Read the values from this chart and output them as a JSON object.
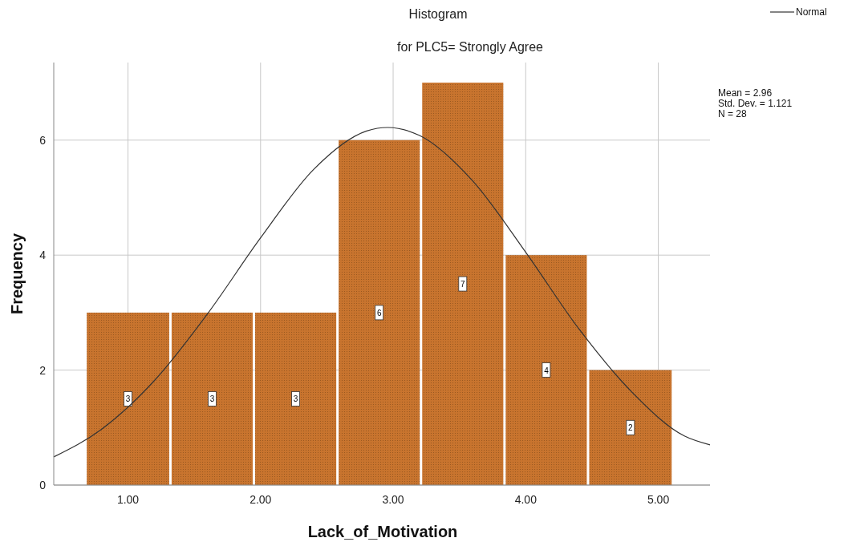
{
  "chart_data": {
    "type": "histogram",
    "title": "Histogram",
    "subtitle": "for PLC5= Strongly Agree",
    "xlabel": "Lack_of_Motivation",
    "ylabel": "Frequency",
    "bins": [
      0.68,
      1.32,
      1.95,
      2.58,
      3.21,
      3.84,
      4.47,
      5.11
    ],
    "series": [
      {
        "color": "#c8742e",
        "values": [
          3,
          3,
          3,
          6,
          7,
          4,
          2
        ],
        "value_labels": [
          "3",
          "3",
          "3",
          "6",
          "7",
          "4",
          "2"
        ]
      },
      {
        "type": "line",
        "name": "Normal",
        "color": "#333333",
        "x": [
          0.44,
          0.8,
          1.2,
          1.6,
          2.0,
          2.4,
          2.8,
          2.96,
          3.2,
          3.6,
          4.0,
          4.4,
          4.8,
          5.2,
          5.39
        ],
        "values": [
          0.49,
          0.97,
          1.82,
          2.98,
          4.3,
          5.49,
          6.16,
          6.22,
          6.08,
          5.29,
          4.05,
          2.72,
          1.62,
          0.85,
          0.7
        ]
      }
    ],
    "xlim": [
      0.44,
      5.39
    ],
    "xticks": [
      {
        "value": 1,
        "label": "1.00"
      },
      {
        "value": 2,
        "label": "2.00"
      },
      {
        "value": 3,
        "label": "3.00"
      },
      {
        "value": 4,
        "label": "4.00"
      },
      {
        "value": 5,
        "label": "5.00"
      }
    ],
    "ylim": [
      0,
      7.35
    ],
    "yticks": [
      0,
      2,
      4,
      6
    ],
    "grid": true,
    "legend": "top right",
    "marker": "none",
    "annotations": [
      "Mean = 2.96",
      "Std. Dev. = 1.121",
      "N = 28"
    ]
  }
}
